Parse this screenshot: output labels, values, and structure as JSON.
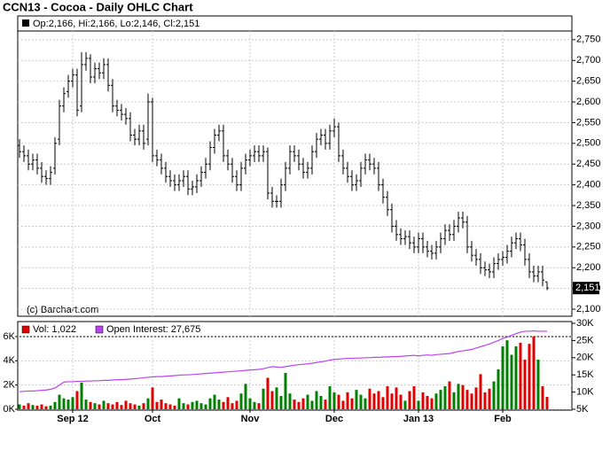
{
  "chart_data": [
    {
      "type": "ohlc",
      "title": "CCN13 - Cocoa - Daily OHLC Chart",
      "legend": "Op:2,166, Hi:2,166, Lo:2,146, Cl:2,151",
      "annotation": "(c) Barchart.com",
      "color": "#000000",
      "last_label": {
        "value": 2151,
        "label": "2,151"
      },
      "xlim": [
        -0.4,
        124.6
      ],
      "ylim": [
        2083,
        2771
      ],
      "yticks": [
        {
          "value": 2100,
          "label": "2,100"
        },
        {
          "value": 2150,
          "label": "2,150"
        },
        {
          "value": 2200,
          "label": "2,200"
        },
        {
          "value": 2250,
          "label": "2,250"
        },
        {
          "value": 2300,
          "label": "2,300"
        },
        {
          "value": 2350,
          "label": "2,350"
        },
        {
          "value": 2400,
          "label": "2,400"
        },
        {
          "value": 2450,
          "label": "2,450"
        },
        {
          "value": 2500,
          "label": "2,500"
        },
        {
          "value": 2550,
          "label": "2,550"
        },
        {
          "value": 2600,
          "label": "2,600"
        },
        {
          "value": 2650,
          "label": "2,650"
        },
        {
          "value": 2700,
          "label": "2,700"
        },
        {
          "value": 2750,
          "label": "2,750"
        }
      ],
      "open": [
        2495,
        2480,
        2470,
        2450,
        2460,
        2440,
        2420,
        2415,
        2440,
        2510,
        2590,
        2625,
        2650,
        2665,
        2590,
        2690,
        2705,
        2660,
        2680,
        2670,
        2690,
        2640,
        2590,
        2580,
        2570,
        2560,
        2520,
        2510,
        2530,
        2510,
        2600,
        2470,
        2460,
        2440,
        2420,
        2410,
        2400,
        2410,
        2420,
        2390,
        2395,
        2410,
        2430,
        2450,
        2490,
        2520,
        2530,
        2470,
        2450,
        2420,
        2400,
        2440,
        2460,
        2470,
        2480,
        2470,
        2480,
        2380,
        2360,
        2360,
        2400,
        2440,
        2480,
        2470,
        2450,
        2430,
        2440,
        2480,
        2510,
        2520,
        2500,
        2530,
        2540,
        2470,
        2440,
        2420,
        2400,
        2410,
        2440,
        2460,
        2450,
        2440,
        2400,
        2370,
        2340,
        2300,
        2280,
        2270,
        2275,
        2260,
        2250,
        2270,
        2250,
        2240,
        2235,
        2250,
        2270,
        2290,
        2280,
        2300,
        2320,
        2310,
        2250,
        2230,
        2220,
        2200,
        2195,
        2190,
        2210,
        2220,
        2225,
        2240,
        2260,
        2270,
        2255,
        2220,
        2190,
        2180,
        2190,
        2166
      ],
      "high": [
        2510,
        2495,
        2485,
        2475,
        2475,
        2455,
        2435,
        2445,
        2515,
        2605,
        2635,
        2665,
        2680,
        2680,
        2720,
        2720,
        2715,
        2695,
        2695,
        2705,
        2705,
        2655,
        2605,
        2595,
        2585,
        2575,
        2535,
        2545,
        2545,
        2620,
        2610,
        2485,
        2475,
        2455,
        2435,
        2425,
        2425,
        2435,
        2435,
        2410,
        2425,
        2445,
        2465,
        2505,
        2535,
        2545,
        2545,
        2485,
        2465,
        2435,
        2455,
        2475,
        2485,
        2495,
        2495,
        2495,
        2490,
        2395,
        2375,
        2415,
        2455,
        2495,
        2495,
        2485,
        2465,
        2455,
        2495,
        2525,
        2535,
        2535,
        2545,
        2560,
        2550,
        2485,
        2455,
        2435,
        2425,
        2455,
        2475,
        2475,
        2465,
        2455,
        2415,
        2385,
        2355,
        2315,
        2295,
        2290,
        2290,
        2275,
        2285,
        2285,
        2265,
        2255,
        2265,
        2285,
        2305,
        2305,
        2315,
        2335,
        2335,
        2325,
        2265,
        2245,
        2235,
        2215,
        2210,
        2225,
        2235,
        2240,
        2255,
        2275,
        2285,
        2285,
        2270,
        2235,
        2205,
        2205,
        2205,
        2166
      ],
      "low": [
        2465,
        2455,
        2435,
        2435,
        2425,
        2405,
        2400,
        2400,
        2425,
        2495,
        2575,
        2610,
        2635,
        2565,
        2575,
        2675,
        2645,
        2645,
        2655,
        2655,
        2625,
        2575,
        2565,
        2555,
        2545,
        2505,
        2495,
        2495,
        2485,
        2495,
        2455,
        2445,
        2425,
        2405,
        2395,
        2385,
        2385,
        2395,
        2375,
        2375,
        2380,
        2395,
        2415,
        2435,
        2475,
        2505,
        2455,
        2435,
        2405,
        2385,
        2385,
        2425,
        2445,
        2455,
        2455,
        2455,
        2365,
        2345,
        2345,
        2345,
        2385,
        2425,
        2455,
        2435,
        2415,
        2415,
        2425,
        2465,
        2495,
        2485,
        2485,
        2515,
        2455,
        2425,
        2405,
        2385,
        2385,
        2395,
        2425,
        2435,
        2425,
        2385,
        2355,
        2325,
        2285,
        2265,
        2255,
        2255,
        2245,
        2235,
        2235,
        2235,
        2225,
        2220,
        2220,
        2235,
        2255,
        2265,
        2265,
        2285,
        2295,
        2235,
        2215,
        2205,
        2185,
        2180,
        2175,
        2175,
        2195,
        2205,
        2210,
        2225,
        2245,
        2240,
        2205,
        2175,
        2165,
        2165,
        2155,
        2146
      ],
      "close": [
        2480,
        2470,
        2450,
        2460,
        2440,
        2420,
        2415,
        2430,
        2500,
        2590,
        2620,
        2650,
        2665,
        2580,
        2690,
        2705,
        2660,
        2680,
        2670,
        2690,
        2640,
        2590,
        2580,
        2570,
        2560,
        2520,
        2510,
        2530,
        2500,
        2600,
        2470,
        2460,
        2440,
        2420,
        2410,
        2400,
        2410,
        2420,
        2390,
        2395,
        2410,
        2430,
        2450,
        2490,
        2520,
        2530,
        2470,
        2450,
        2420,
        2400,
        2440,
        2460,
        2470,
        2480,
        2470,
        2480,
        2380,
        2360,
        2360,
        2400,
        2440,
        2480,
        2470,
        2450,
        2430,
        2440,
        2480,
        2510,
        2520,
        2500,
        2530,
        2540,
        2470,
        2440,
        2420,
        2400,
        2410,
        2440,
        2460,
        2450,
        2440,
        2400,
        2370,
        2340,
        2300,
        2280,
        2270,
        2275,
        2260,
        2250,
        2270,
        2250,
        2240,
        2235,
        2250,
        2270,
        2290,
        2280,
        2300,
        2320,
        2310,
        2250,
        2230,
        2220,
        2200,
        2195,
        2190,
        2210,
        2220,
        2225,
        2240,
        2260,
        2270,
        2255,
        2220,
        2190,
        2180,
        2190,
        2170,
        2151
      ],
      "grid": true
    },
    {
      "type": "volume",
      "xlim": [
        -0.4,
        124.6
      ],
      "xticks": [
        {
          "value": 12,
          "label": "Sep 12"
        },
        {
          "value": 30,
          "label": "Oct"
        },
        {
          "value": 52,
          "label": "Nov"
        },
        {
          "value": 71,
          "label": "Dec"
        },
        {
          "value": 90,
          "label": "Jan 13"
        },
        {
          "value": 109,
          "label": "Feb"
        }
      ],
      "ylim": [
        0,
        6000
      ],
      "yticks": [
        {
          "value": 0,
          "label": "0K"
        },
        {
          "value": 2000,
          "label": "2K"
        },
        {
          "value": 4000,
          "label": "4K"
        },
        {
          "value": 6000,
          "label": "6K"
        }
      ],
      "y2lim": [
        5000,
        30000
      ],
      "y2ticks": [
        {
          "value": 5000,
          "label": "5K"
        },
        {
          "value": 10000,
          "label": "10K"
        },
        {
          "value": 15000,
          "label": "15K"
        },
        {
          "value": 20000,
          "label": "20K"
        },
        {
          "value": 25000,
          "label": "25K"
        },
        {
          "value": 30000,
          "label": "30K"
        }
      ],
      "up_color": "#008000",
      "down_color": "#e00000",
      "series": [
        {
          "name": "Vol: 1,022",
          "color": "#e00000",
          "values": [
            400,
            300,
            500,
            350,
            300,
            400,
            250,
            300,
            600,
            1200,
            900,
            800,
            1000,
            1500,
            2200,
            800,
            600,
            500,
            400,
            700,
            500,
            400,
            600,
            350,
            700,
            500,
            400,
            300,
            500,
            900,
            1800,
            600,
            800,
            500,
            400,
            300,
            900,
            500,
            400,
            600,
            700,
            500,
            400,
            900,
            1200,
            800,
            600,
            1000,
            500,
            700,
            1300,
            2100,
            900,
            600,
            500,
            1700,
            2600,
            1500,
            1800,
            1100,
            3000,
            1300,
            800,
            600,
            900,
            1200,
            700,
            1500,
            1100,
            800,
            1900,
            1400,
            1200,
            700,
            1400,
            900,
            1600,
            1200,
            900,
            1700,
            1300,
            1500,
            1000,
            1900,
            1300,
            1800,
            1200,
            700,
            1500,
            1900,
            700,
            1400,
            1100,
            900,
            1300,
            1600,
            1900,
            2300,
            1400,
            2100,
            2000,
            1600,
            1300,
            1800,
            2900,
            1400,
            1700,
            2300,
            3300,
            5200,
            5700,
            4500,
            5200,
            5500,
            4100,
            5400,
            6000,
            4100,
            1900,
            1022
          ]
        },
        {
          "name": "Open Interest: 27,675",
          "color": "#bb44ee",
          "axis": "y2",
          "values": [
            10100,
            10200,
            10300,
            10300,
            10400,
            10500,
            10600,
            10800,
            11200,
            12000,
            12900,
            13000,
            13000,
            13100,
            13100,
            13200,
            13200,
            13300,
            13300,
            13400,
            13400,
            13500,
            13600,
            13600,
            13700,
            13800,
            13900,
            14000,
            14200,
            14300,
            14400,
            14500,
            14500,
            14600,
            14700,
            14800,
            14900,
            15000,
            15000,
            15100,
            15200,
            15300,
            15400,
            15500,
            15600,
            15700,
            15800,
            15900,
            16000,
            16100,
            16200,
            16300,
            16400,
            16500,
            16600,
            16800,
            17100,
            17400,
            17300,
            17200,
            17400,
            17600,
            17800,
            18000,
            18100,
            18200,
            18400,
            18600,
            18800,
            19000,
            19300,
            19500,
            19600,
            19700,
            19800,
            19800,
            19900,
            19900,
            20000,
            20000,
            20100,
            20100,
            20200,
            20200,
            20300,
            20300,
            20400,
            20500,
            20600,
            20700,
            20500,
            20700,
            20800,
            20700,
            20900,
            21000,
            21100,
            21200,
            21500,
            21800,
            22000,
            22200,
            22400,
            22800,
            23200,
            23600,
            24000,
            24500,
            25000,
            25600,
            26000,
            26500,
            27000,
            27400,
            27700,
            27700,
            27800,
            27700,
            27700,
            27675
          ]
        }
      ],
      "grid": true
    }
  ]
}
